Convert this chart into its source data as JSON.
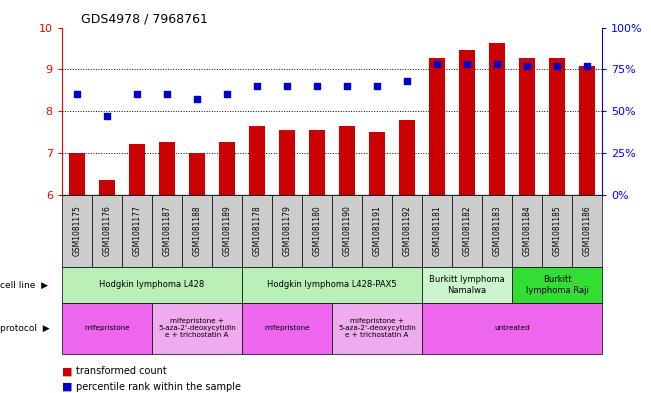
{
  "title": "GDS4978 / 7968761",
  "samples": [
    "GSM1081175",
    "GSM1081176",
    "GSM1081177",
    "GSM1081187",
    "GSM1081188",
    "GSM1081189",
    "GSM1081178",
    "GSM1081179",
    "GSM1081180",
    "GSM1081190",
    "GSM1081191",
    "GSM1081192",
    "GSM1081181",
    "GSM1081182",
    "GSM1081183",
    "GSM1081184",
    "GSM1081185",
    "GSM1081186"
  ],
  "red_values": [
    7.0,
    6.35,
    7.2,
    7.25,
    7.0,
    7.25,
    7.65,
    7.55,
    7.55,
    7.65,
    7.5,
    7.78,
    9.27,
    9.45,
    9.62,
    9.28,
    9.28,
    9.08
  ],
  "blue_values": [
    60,
    47,
    60,
    60,
    57,
    60,
    65,
    65,
    65,
    65,
    65,
    68,
    78,
    78,
    78,
    77,
    77,
    77
  ],
  "ylim_left": [
    6,
    10
  ],
  "ylim_right": [
    0,
    100
  ],
  "yticks_left": [
    6,
    7,
    8,
    9,
    10
  ],
  "yticks_right": [
    0,
    25,
    50,
    75,
    100
  ],
  "ytick_labels_right": [
    "0%",
    "25%",
    "50%",
    "75%",
    "100%"
  ],
  "cell_line_groups": [
    {
      "label": "Hodgkin lymphoma L428",
      "start": 0,
      "end": 6,
      "color": "#b8f0b8"
    },
    {
      "label": "Hodgkin lymphoma L428-PAX5",
      "start": 6,
      "end": 12,
      "color": "#b8f0b8"
    },
    {
      "label": "Burkitt lymphoma\nNamalwa",
      "start": 12,
      "end": 15,
      "color": "#ccf5cc"
    },
    {
      "label": "Burkitt\nlymphoma Raji",
      "start": 15,
      "end": 18,
      "color": "#33dd33"
    }
  ],
  "protocol_groups": [
    {
      "label": "mifepristone",
      "start": 0,
      "end": 3,
      "color": "#ee66ee"
    },
    {
      "label": "mifepristone +\n5-aza-2'-deoxycytidin\ne + trichostatin A",
      "start": 3,
      "end": 6,
      "color": "#f0aaee"
    },
    {
      "label": "mifepristone",
      "start": 6,
      "end": 9,
      "color": "#ee66ee"
    },
    {
      "label": "mifepristone +\n5-aza-2'-deoxycytidin\ne + trichostatin A",
      "start": 9,
      "end": 12,
      "color": "#f0aaee"
    },
    {
      "label": "untreated",
      "start": 12,
      "end": 18,
      "color": "#ee66ee"
    }
  ],
  "red_color": "#cc0000",
  "blue_color": "#0000cc",
  "bar_width": 0.55,
  "dot_size": 25,
  "gridlines": [
    7,
    8,
    9
  ],
  "xticklabel_bg": "#cccccc"
}
